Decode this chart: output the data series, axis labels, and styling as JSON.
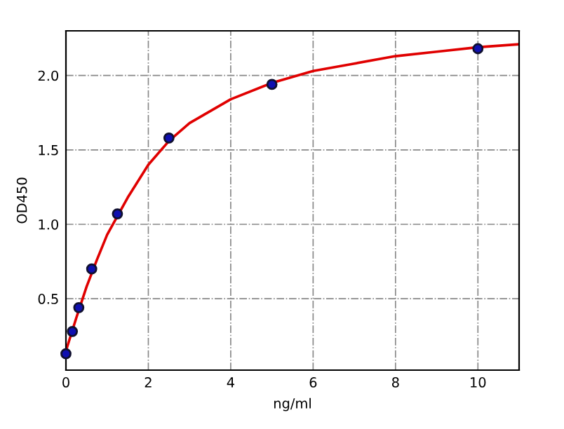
{
  "chart_data": {
    "type": "scatter",
    "xlabel": "ng/ml",
    "ylabel": "OD450",
    "xlim": [
      0,
      11
    ],
    "ylim": [
      0.02,
      2.3
    ],
    "xticks": [
      0,
      2,
      4,
      6,
      8,
      10
    ],
    "yticks": [
      {
        "value": 0.5,
        "label": "0.5"
      },
      {
        "value": 1,
        "label": "1.0"
      },
      {
        "value": 1.5,
        "label": "1.5"
      },
      {
        "value": 2,
        "label": "2.0"
      }
    ],
    "grid": true,
    "series": [
      {
        "type": "line",
        "marker": "none",
        "color": "#e00000",
        "x": [
          0,
          0.25,
          0.5,
          0.75,
          1,
          1.5,
          2,
          2.5,
          3,
          4,
          5,
          6,
          7,
          8,
          9,
          10,
          11
        ],
        "values": [
          0.15,
          0.37,
          0.58,
          0.76,
          0.93,
          1.18,
          1.4,
          1.56,
          1.68,
          1.84,
          1.95,
          2.03,
          2.08,
          2.13,
          2.16,
          2.19,
          2.21
        ]
      },
      {
        "marker": "circle",
        "color": "#1010b0",
        "x": [
          0,
          0.156,
          0.312,
          0.625,
          1.25,
          2.5,
          5,
          10
        ],
        "values": [
          0.13,
          0.28,
          0.44,
          0.7,
          1.07,
          1.58,
          1.94,
          2.18
        ]
      }
    ]
  }
}
